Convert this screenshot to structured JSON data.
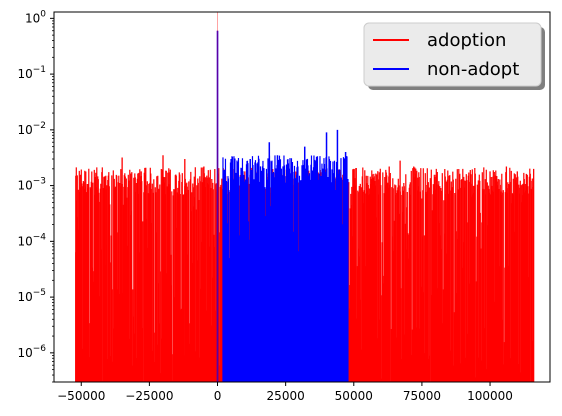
{
  "chart_data": {
    "type": "area",
    "yscale": "log",
    "xlim": [
      -60000,
      122000
    ],
    "ylim": [
      3e-07,
      1.3
    ],
    "grid": false,
    "legend_placement": "top-right",
    "x_ticks": [
      {
        "value": -50000,
        "label": "−50000"
      },
      {
        "value": -25000,
        "label": "−25000"
      },
      {
        "value": 0,
        "label": "0"
      },
      {
        "value": 25000,
        "label": "25000"
      },
      {
        "value": 50000,
        "label": "50000"
      },
      {
        "value": 75000,
        "label": "75000"
      },
      {
        "value": 100000,
        "label": "100000"
      }
    ],
    "y_ticks": [
      {
        "value": 1,
        "mantissa": "10",
        "exp": "0"
      },
      {
        "value": 0.1,
        "mantissa": "10",
        "exp": "−1"
      },
      {
        "value": 0.01,
        "mantissa": "10",
        "exp": "−2"
      },
      {
        "value": 0.001,
        "mantissa": "10",
        "exp": "−3"
      },
      {
        "value": 0.0001,
        "mantissa": "10",
        "exp": "−4"
      },
      {
        "value": 1e-05,
        "mantissa": "10",
        "exp": "−5"
      },
      {
        "value": 1e-06,
        "mantissa": "10",
        "exp": "−6"
      }
    ],
    "series": [
      {
        "name": "adoption",
        "color": "#ff0000",
        "x_range": [
          -52000,
          116000
        ],
        "typical_value": 0.0012,
        "peaks": [
          [
            -52000,
            0.0015
          ],
          [
            -41000,
            0.0015
          ],
          [
            -35000,
            0.0032
          ],
          [
            -28000,
            0.0018
          ],
          [
            -20000,
            0.0035
          ],
          [
            -12000,
            0.003
          ],
          [
            -5000,
            0.0022
          ],
          [
            0,
            0.6
          ],
          [
            50000,
            0.002
          ],
          [
            57000,
            0.0014
          ],
          [
            63000,
            0.0022
          ],
          [
            67000,
            0.0028
          ],
          [
            72000,
            0.0022
          ],
          [
            85000,
            0.0015
          ],
          [
            93000,
            0.0016
          ],
          [
            100000,
            0.0018
          ],
          [
            106000,
            0.0022
          ],
          [
            110000,
            0.0018
          ],
          [
            116000,
            0.002
          ]
        ]
      },
      {
        "name": "non-adopt",
        "color": "#0000ff",
        "x_range": [
          2000,
          48000
        ],
        "typical_value": 0.002,
        "peaks": [
          [
            0,
            0.6
          ],
          [
            5000,
            0.003
          ],
          [
            12000,
            0.003
          ],
          [
            19000,
            0.006
          ],
          [
            22000,
            0.0035
          ],
          [
            32000,
            0.005
          ],
          [
            40000,
            0.009
          ],
          [
            44000,
            0.01
          ],
          [
            47000,
            0.004
          ]
        ]
      }
    ]
  }
}
